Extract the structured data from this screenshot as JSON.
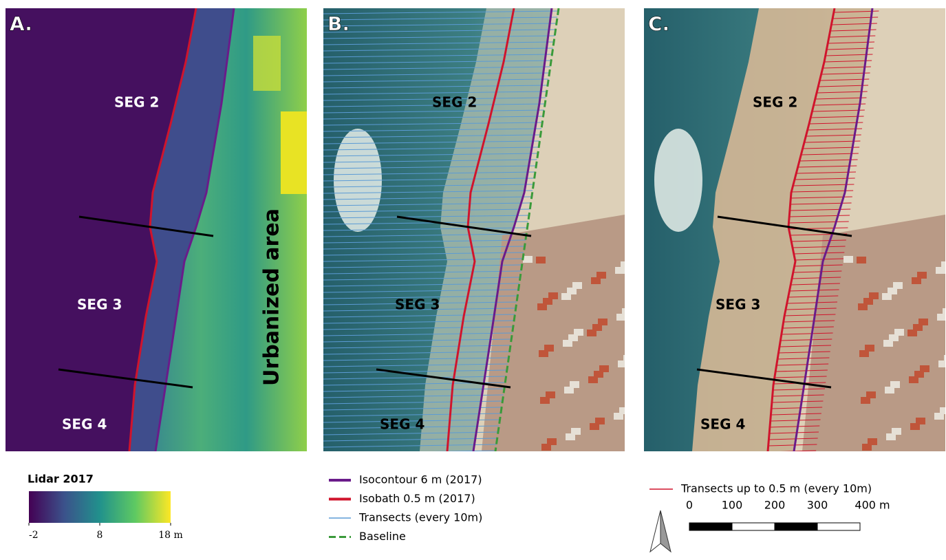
{
  "panels": [
    {
      "label": "A.",
      "segments": [
        "SEG 2",
        "SEG 3",
        "SEG 4"
      ],
      "annotation": "Urbanized area"
    },
    {
      "label": "B.",
      "segments": [
        "SEG 2",
        "SEG 3",
        "SEG 4"
      ]
    },
    {
      "label": "C.",
      "segments": [
        "SEG 2",
        "SEG 3",
        "SEG 4"
      ]
    }
  ],
  "colorbar": {
    "title": "Lidar 2017",
    "range": [
      -2,
      18
    ],
    "ticks": [
      -2,
      8,
      {
        "value": 18,
        "label": "18 m"
      }
    ]
  },
  "legend_b": [
    {
      "label": "Isocontour 6 m (2017)",
      "color": "#6a1b8a"
    },
    {
      "label": "Isobath 0.5 m (2017)",
      "color": "#d0142c"
    },
    {
      "label": "Transects (every 10m)",
      "color": "#5b9bd5"
    },
    {
      "label": "Baseline",
      "color": "#3a9a3a"
    }
  ],
  "legend_c": [
    {
      "label": "Transects up to 0.5 m (every 10m)",
      "color": "#d0142c"
    }
  ],
  "scale_bar": {
    "ticks": [
      0,
      100,
      200,
      300,
      {
        "value": 400,
        "label": "400 m"
      }
    ]
  }
}
